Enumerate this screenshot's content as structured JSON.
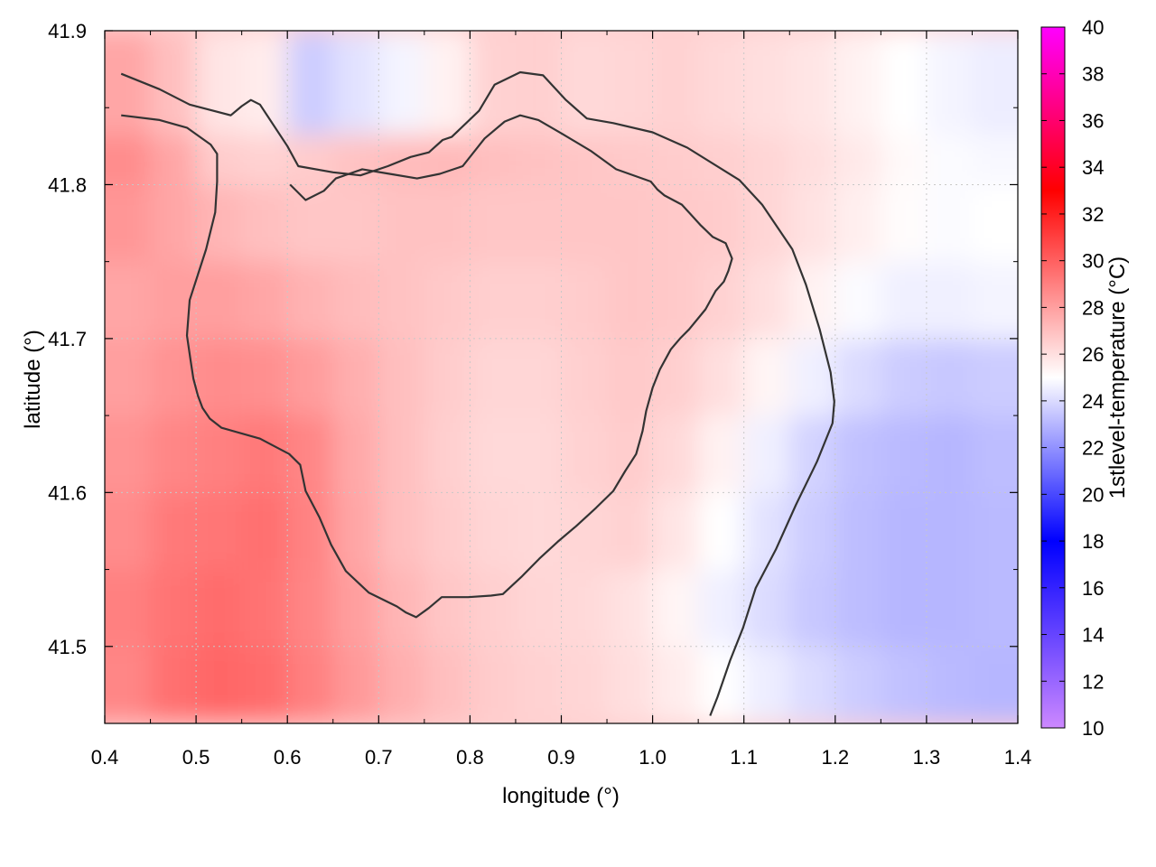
{
  "chart_data": {
    "type": "heatmap",
    "title": "",
    "xlabel": "longitude (°)",
    "ylabel": "latitude (°)",
    "colorbar_label": "1stlevel-temperature (°C)",
    "xlim": [
      0.4,
      1.4
    ],
    "ylim": [
      41.45,
      41.9
    ],
    "clim": [
      10,
      40
    ],
    "x_ticks": [
      0.4,
      0.5,
      0.6,
      0.7,
      0.8,
      0.9,
      1.0,
      1.1,
      1.2,
      1.3,
      1.4
    ],
    "x_tick_labels": [
      "0.4",
      "0.5",
      "0.6",
      "0.7",
      "0.8",
      "0.9",
      "1.0",
      "1.1",
      "1.2",
      "1.3",
      "1.4"
    ],
    "y_ticks": [
      41.5,
      41.6,
      41.7,
      41.8,
      41.9
    ],
    "y_tick_labels": [
      "41.5",
      "41.6",
      "41.7",
      "41.8",
      "41.9"
    ],
    "colorbar_ticks": [
      10,
      12,
      14,
      16,
      18,
      20,
      22,
      24,
      26,
      28,
      30,
      32,
      34,
      36,
      38,
      40
    ],
    "colorbar_tick_labels": [
      "10",
      "12",
      "14",
      "16",
      "18",
      "20",
      "22",
      "24",
      "26",
      "28",
      "30",
      "32",
      "34",
      "36",
      "38",
      "40"
    ],
    "colormap": [
      {
        "value": 10,
        "color": "#cc88ff"
      },
      {
        "value": 18,
        "color": "#0000ff"
      },
      {
        "value": 25,
        "color": "#ffffff"
      },
      {
        "value": 33,
        "color": "#ff0000"
      },
      {
        "value": 40,
        "color": "#ff00ff"
      }
    ],
    "grid": true,
    "grid_nx": 20,
    "grid_ny": 9,
    "temperature_grid": [
      [
        28.8,
        29.5,
        29.8,
        29.6,
        29.0,
        28.2,
        27.5,
        27.0,
        26.6,
        26.4,
        26.3,
        26.0,
        25.6,
        25.0,
        24.5,
        24.0,
        23.6,
        23.3,
        23.1,
        23.0
      ],
      [
        29.0,
        29.4,
        29.6,
        29.4,
        28.8,
        28.0,
        27.3,
        26.8,
        26.5,
        26.3,
        26.2,
        25.9,
        25.3,
        24.6,
        24.0,
        23.5,
        23.2,
        23.0,
        23.0,
        23.1
      ],
      [
        28.6,
        29.2,
        29.3,
        29.5,
        28.9,
        27.8,
        27.0,
        26.6,
        26.3,
        26.2,
        26.3,
        26.4,
        25.8,
        25.0,
        24.2,
        23.6,
        23.2,
        23.0,
        23.0,
        23.1
      ],
      [
        28.4,
        28.8,
        29.0,
        29.2,
        28.8,
        27.7,
        27.0,
        26.5,
        26.2,
        26.2,
        26.4,
        26.6,
        26.2,
        25.4,
        24.6,
        23.8,
        23.3,
        23.1,
        23.0,
        23.2
      ],
      [
        28.0,
        28.4,
        28.6,
        28.5,
        28.1,
        27.5,
        27.0,
        26.6,
        26.3,
        26.3,
        26.5,
        26.7,
        26.5,
        26.0,
        25.3,
        24.6,
        24.0,
        23.6,
        23.5,
        23.6
      ],
      [
        27.8,
        28.0,
        28.0,
        27.8,
        27.4,
        27.1,
        26.9,
        26.7,
        26.5,
        26.5,
        26.6,
        26.8,
        26.7,
        26.4,
        26.0,
        25.4,
        24.9,
        24.6,
        24.6,
        24.7
      ],
      [
        28.3,
        27.8,
        27.3,
        27.0,
        26.8,
        26.8,
        26.9,
        26.9,
        26.8,
        26.8,
        26.8,
        26.8,
        26.7,
        26.6,
        26.3,
        25.9,
        25.5,
        25.1,
        24.9,
        25.0
      ],
      [
        28.6,
        27.8,
        26.6,
        26.4,
        26.6,
        26.9,
        27.1,
        27.2,
        27.0,
        26.9,
        26.8,
        26.7,
        26.6,
        26.5,
        26.3,
        26.0,
        25.7,
        25.2,
        24.9,
        24.8
      ],
      [
        27.8,
        27.0,
        25.8,
        25.6,
        23.6,
        24.2,
        24.7,
        25.4,
        26.4,
        26.5,
        26.2,
        26.3,
        26.4,
        26.2,
        26.0,
        25.8,
        25.4,
        25.0,
        24.7,
        24.5
      ]
    ],
    "contours": [
      [
        [
          0.418,
          41.872
        ],
        [
          0.46,
          41.862
        ],
        [
          0.493,
          41.852
        ],
        [
          0.538,
          41.845
        ],
        [
          0.55,
          41.851
        ],
        [
          0.56,
          41.855
        ],
        [
          0.57,
          41.852
        ],
        [
          0.6,
          41.825
        ],
        [
          0.612,
          41.812
        ],
        [
          0.65,
          41.808
        ],
        [
          0.68,
          41.806
        ],
        [
          0.71,
          41.812
        ],
        [
          0.735,
          41.818
        ],
        [
          0.755,
          41.821
        ],
        [
          0.77,
          41.829
        ],
        [
          0.78,
          41.831
        ],
        [
          0.81,
          41.848
        ],
        [
          0.827,
          41.865
        ],
        [
          0.855,
          41.873
        ],
        [
          0.88,
          41.871
        ],
        [
          0.905,
          41.855
        ],
        [
          0.928,
          41.843
        ],
        [
          0.957,
          41.84
        ],
        [
          1.0,
          41.834
        ],
        [
          1.038,
          41.824
        ],
        [
          1.095,
          41.803
        ],
        [
          1.12,
          41.787
        ],
        [
          1.153,
          41.758
        ],
        [
          1.168,
          41.735
        ],
        [
          1.183,
          41.706
        ],
        [
          1.195,
          41.678
        ],
        [
          1.199,
          41.659
        ],
        [
          1.197,
          41.645
        ],
        [
          1.18,
          41.62
        ],
        [
          1.157,
          41.592
        ],
        [
          1.135,
          41.563
        ],
        [
          1.113,
          41.538
        ],
        [
          1.099,
          41.512
        ],
        [
          1.085,
          41.491
        ],
        [
          1.071,
          41.467
        ],
        [
          1.063,
          41.455
        ]
      ],
      [
        [
          0.418,
          41.845
        ],
        [
          0.46,
          41.842
        ],
        [
          0.49,
          41.837
        ],
        [
          0.516,
          41.826
        ],
        [
          0.523,
          41.82
        ],
        [
          0.523,
          41.802
        ],
        [
          0.521,
          41.782
        ],
        [
          0.511,
          41.758
        ],
        [
          0.493,
          41.725
        ],
        [
          0.49,
          41.702
        ],
        [
          0.494,
          41.686
        ],
        [
          0.497,
          41.674
        ],
        [
          0.502,
          41.663
        ],
        [
          0.507,
          41.655
        ],
        [
          0.515,
          41.648
        ],
        [
          0.528,
          41.642
        ],
        [
          0.57,
          41.635
        ],
        [
          0.586,
          41.63
        ],
        [
          0.602,
          41.625
        ],
        [
          0.614,
          41.618
        ],
        [
          0.62,
          41.601
        ],
        [
          0.635,
          41.584
        ],
        [
          0.648,
          41.566
        ],
        [
          0.664,
          41.549
        ],
        [
          0.689,
          41.535
        ],
        [
          0.72,
          41.526
        ],
        [
          0.73,
          41.522
        ],
        [
          0.741,
          41.519
        ],
        [
          0.755,
          41.525
        ],
        [
          0.769,
          41.532
        ],
        [
          0.798,
          41.532
        ],
        [
          0.823,
          41.533
        ],
        [
          0.836,
          41.534
        ],
        [
          0.856,
          41.545
        ],
        [
          0.876,
          41.557
        ],
        [
          0.896,
          41.568
        ],
        [
          0.916,
          41.578
        ],
        [
          0.938,
          41.59
        ],
        [
          0.957,
          41.601
        ],
        [
          0.97,
          41.614
        ],
        [
          0.982,
          41.625
        ],
        [
          0.989,
          41.64
        ],
        [
          0.993,
          41.653
        ],
        [
          1.0,
          41.668
        ],
        [
          1.008,
          41.68
        ],
        [
          1.02,
          41.693
        ],
        [
          1.03,
          41.7
        ],
        [
          1.04,
          41.706
        ],
        [
          1.058,
          41.719
        ],
        [
          1.069,
          41.731
        ],
        [
          1.078,
          41.737
        ],
        [
          1.083,
          41.744
        ],
        [
          1.087,
          41.752
        ],
        [
          1.08,
          41.762
        ],
        [
          1.066,
          41.766
        ],
        [
          1.052,
          41.774
        ],
        [
          1.032,
          41.787
        ],
        [
          1.013,
          41.793
        ],
        [
          1.005,
          41.797
        ],
        [
          0.998,
          41.802
        ],
        [
          0.96,
          41.81
        ],
        [
          0.932,
          41.822
        ],
        [
          0.901,
          41.833
        ],
        [
          0.875,
          41.842
        ],
        [
          0.855,
          41.845
        ],
        [
          0.838,
          41.841
        ],
        [
          0.816,
          41.83
        ],
        [
          0.792,
          41.812
        ],
        [
          0.767,
          41.807
        ],
        [
          0.742,
          41.804
        ],
        [
          0.712,
          41.807
        ],
        [
          0.682,
          41.81
        ],
        [
          0.653,
          41.804
        ],
        [
          0.64,
          41.796
        ],
        [
          0.62,
          41.79
        ],
        [
          0.603,
          41.8
        ]
      ]
    ]
  }
}
